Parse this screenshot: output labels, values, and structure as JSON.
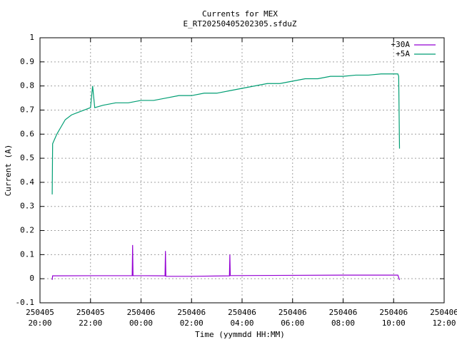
{
  "chart_data": {
    "type": "line",
    "title": "Currents for MEX",
    "subtitle": "E_RT20250405202305.sfduZ",
    "xlabel": "Time (yymmdd HH:MM)",
    "ylabel": "Current (A)",
    "xlim": [
      "250405 20:00",
      "250406 12:00"
    ],
    "xticks": [
      "250405 20:00",
      "250405 22:00",
      "250406 00:00",
      "250406 02:00",
      "250406 04:00",
      "250406 06:00",
      "250406 08:00",
      "250406 10:00",
      "250406 12:00"
    ],
    "ylim": [
      -0.1,
      1
    ],
    "yticks": [
      -0.1,
      0,
      0.1,
      0.2,
      0.3,
      0.4,
      0.5,
      0.6,
      0.7,
      0.8,
      0.9,
      1
    ],
    "grid": true,
    "legend": "top-right",
    "series": [
      {
        "name": "+30A",
        "color": "#9400d3",
        "x": [
          "250405 20:29",
          "250405 20:30",
          "250405 23:39",
          "250405 23:40",
          "250405 23:41",
          "250406 00:57",
          "250406 00:58",
          "250406 00:59",
          "250406 02:00",
          "250406 03:30",
          "250406 03:31",
          "250406 03:32",
          "250406 06:00",
          "250406 08:00",
          "250406 10:10",
          "250406 10:12",
          "250406 10:14"
        ],
        "values": [
          -0.005,
          0.012,
          0.013,
          0.14,
          0.013,
          0.012,
          0.115,
          0.01,
          0.01,
          0.012,
          0.1,
          0.013,
          0.014,
          0.015,
          0.015,
          0.005,
          -0.005
        ]
      },
      {
        "name": "+5A",
        "color": "#009e73",
        "x": [
          "250405 20:29",
          "250405 20:30",
          "250405 20:40",
          "250405 20:50",
          "250405 21:00",
          "250405 21:15",
          "250405 21:30",
          "250405 21:45",
          "250405 22:00",
          "250405 22:05",
          "250405 22:10",
          "250405 22:30",
          "250405 23:00",
          "250405 23:30",
          "250406 00:00",
          "250406 00:30",
          "250406 01:00",
          "250406 01:30",
          "250406 02:00",
          "250406 02:30",
          "250406 03:00",
          "250406 03:30",
          "250406 04:00",
          "250406 04:30",
          "250406 05:00",
          "250406 05:30",
          "250406 06:00",
          "250406 06:30",
          "250406 07:00",
          "250406 07:30",
          "250406 08:00",
          "250406 08:30",
          "250406 09:00",
          "250406 09:30",
          "250406 10:00",
          "250406 10:10",
          "250406 10:12",
          "250406 10:14"
        ],
        "values": [
          0.35,
          0.56,
          0.6,
          0.63,
          0.66,
          0.68,
          0.69,
          0.7,
          0.71,
          0.8,
          0.71,
          0.72,
          0.73,
          0.73,
          0.74,
          0.74,
          0.75,
          0.76,
          0.76,
          0.77,
          0.77,
          0.78,
          0.79,
          0.8,
          0.81,
          0.81,
          0.82,
          0.83,
          0.83,
          0.84,
          0.84,
          0.845,
          0.845,
          0.85,
          0.85,
          0.85,
          0.84,
          0.54
        ]
      }
    ]
  }
}
